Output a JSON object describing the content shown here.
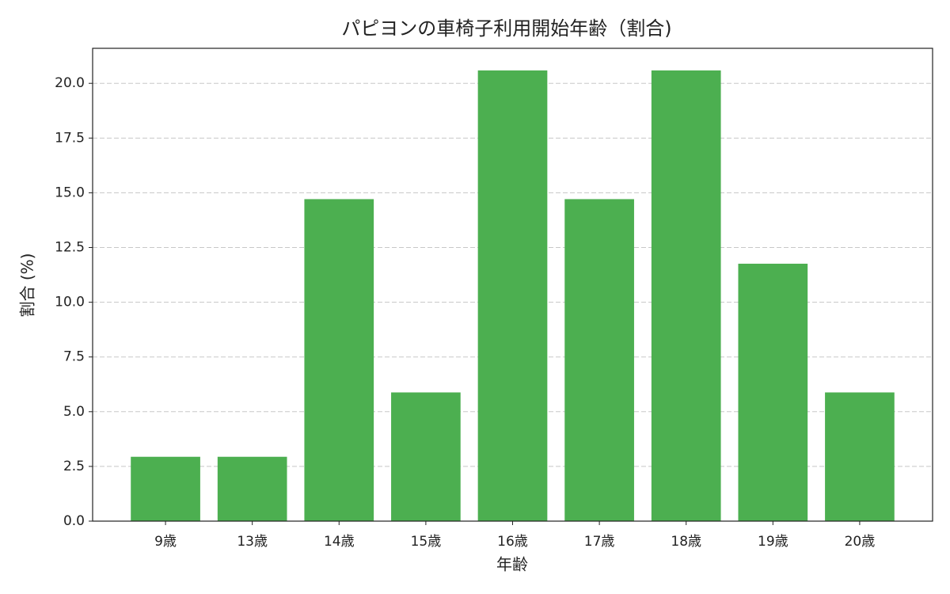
{
  "chart_data": {
    "type": "bar",
    "title": "パピヨンの車椅子利用開始年齢（割合)",
    "x_label": "年齢",
    "y_label": "割合 (%)",
    "categories": [
      "9歳",
      "13歳",
      "14歳",
      "15歳",
      "16歳",
      "17歳",
      "18歳",
      "19歳",
      "20歳"
    ],
    "values": [
      2.94,
      2.94,
      14.71,
      5.88,
      20.59,
      14.71,
      20.59,
      11.76,
      5.88
    ],
    "color": "#4caf50",
    "ylim": [
      0,
      21.6
    ],
    "yticks": [
      {
        "value": 0,
        "label": "0.0"
      },
      2.5,
      {
        "value": 5,
        "label": "5.0"
      },
      7.5,
      {
        "value": 10,
        "label": "10.0"
      },
      12.5,
      {
        "value": 15,
        "label": "15.0"
      },
      17.5,
      {
        "value": 20,
        "label": "20.0"
      }
    ],
    "grid": true
  }
}
